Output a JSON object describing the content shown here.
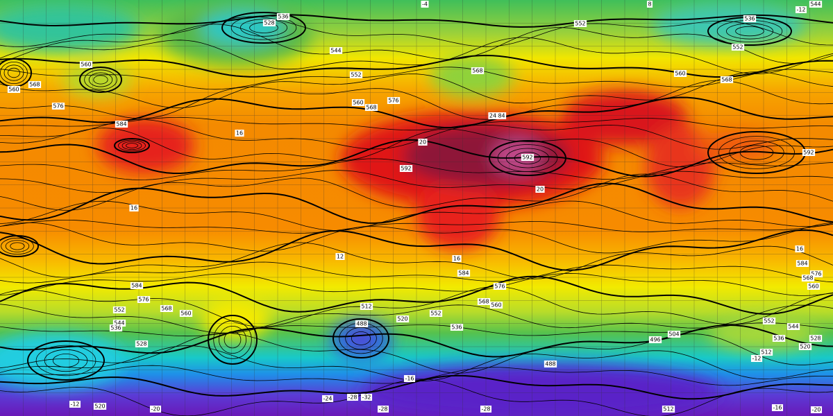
{
  "labels": [
    "544",
    "536",
    "528",
    "552",
    "536",
    "544",
    "560",
    "560",
    "568",
    "576",
    "584",
    "552",
    "560",
    "568",
    "576",
    "568",
    "584",
    "560",
    "568",
    "552",
    "592",
    "592",
    "592",
    "584",
    "576",
    "584",
    "576",
    "568",
    "560",
    "552",
    "544",
    "536",
    "528",
    "512",
    "488",
    "520",
    "552",
    "560",
    "568",
    "536",
    "504",
    "496",
    "488",
    "552",
    "544",
    "536",
    "528",
    "520",
    "512",
    "584",
    "576",
    "568",
    "560",
    "520",
    "512",
    "-12",
    "-20",
    "-24",
    "-28",
    "-32",
    "-28",
    "-16",
    "-28",
    "-12",
    "-16",
    "-20",
    "-12",
    "16",
    "16",
    "20",
    "24",
    "20",
    "16",
    "12",
    "16",
    "8",
    "-4"
  ]
}
